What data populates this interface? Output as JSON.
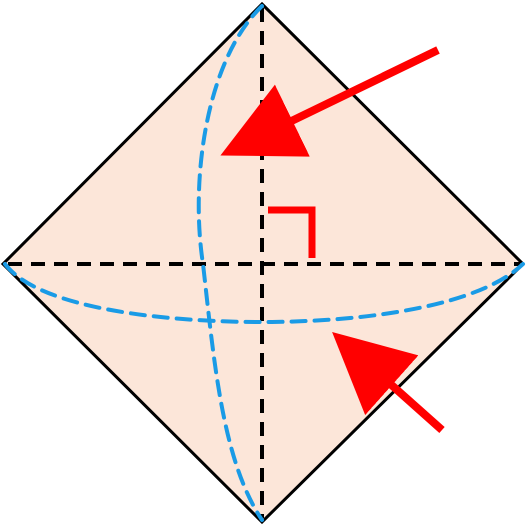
{
  "diagram": {
    "colors": {
      "fill": "#fce6d9",
      "outline": "#000000",
      "axes": "#000000",
      "ellipse": "#1a9be6",
      "arrows": "#ff0000",
      "right_angle": "#ff0000"
    },
    "elements": {
      "shape": "square-rotated",
      "axes": [
        "vertical-dashed",
        "horizontal-dashed"
      ],
      "curves": [
        "vertical-dashed-ellipse",
        "horizontal-dashed-ellipse"
      ],
      "markers": [
        "right-angle-marker"
      ],
      "arrows": [
        "arrow-to-vertical-ellipse",
        "arrow-to-horizontal-ellipse"
      ]
    }
  }
}
